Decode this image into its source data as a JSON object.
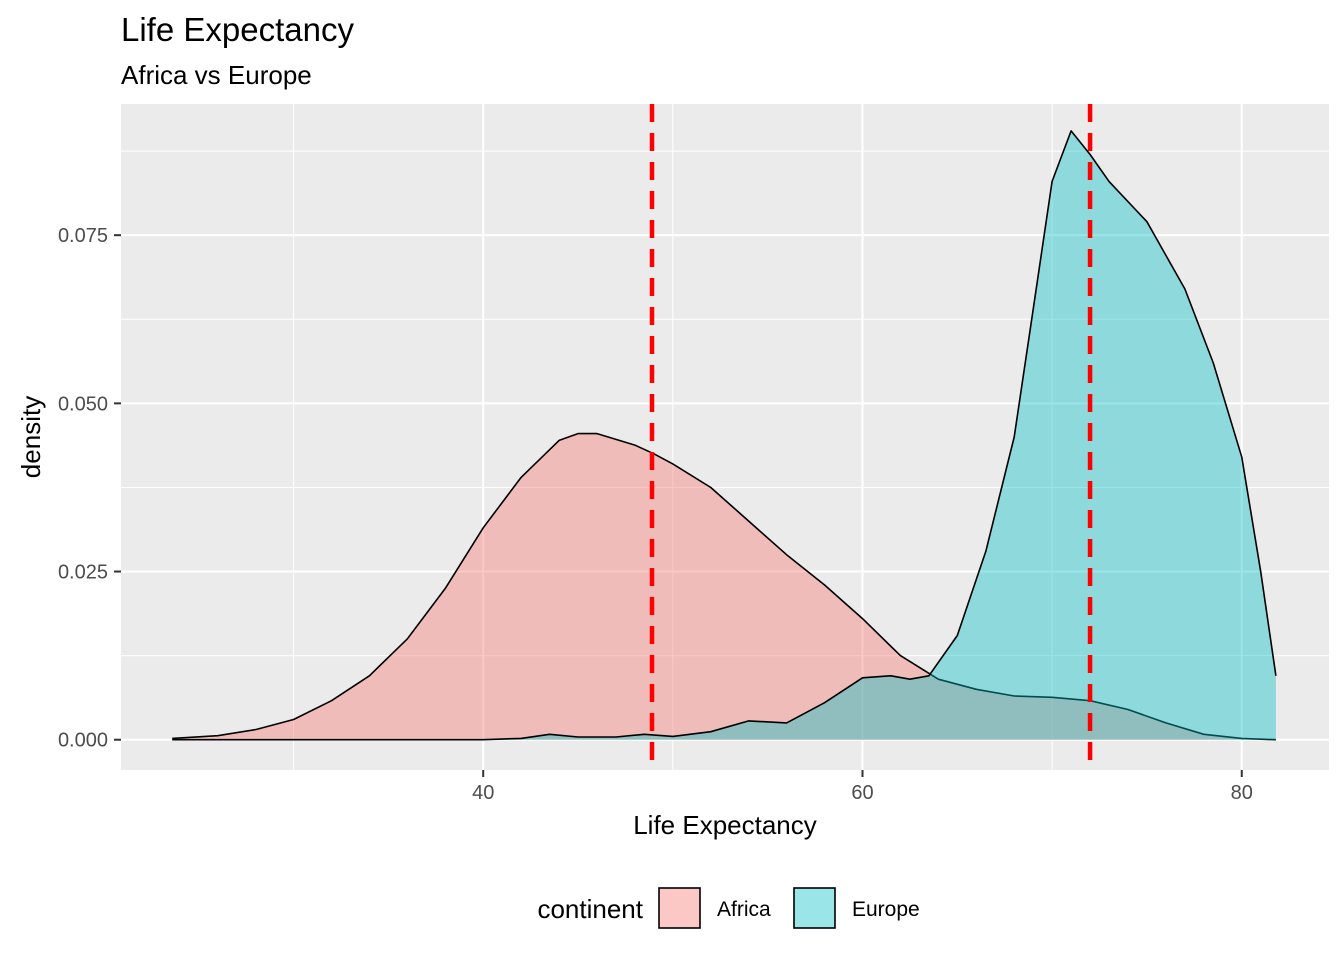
{
  "chart_data": {
    "type": "area",
    "title": "Life Expectancy",
    "subtitle": "Africa vs Europe",
    "xlabel": "Life Expectancy",
    "ylabel": "density",
    "xlim": [
      20.9,
      84.6
    ],
    "ylim": [
      -0.0045,
      0.0945
    ],
    "x_ticks": [
      40,
      60,
      80
    ],
    "x_tick_labels": [
      "40",
      "60",
      "80"
    ],
    "y_ticks": [
      0.0,
      0.025,
      0.05,
      0.075
    ],
    "y_tick_labels": [
      "0.000",
      "0.025",
      "0.050",
      "0.075"
    ],
    "grid": true,
    "legend": {
      "title": "continent",
      "position": "bottom"
    },
    "series": [
      {
        "name": "Africa",
        "color": "#F8766D",
        "opacity": 0.4,
        "mean": 48.9,
        "points": [
          [
            23.6,
            0.0002
          ],
          [
            26,
            0.0006
          ],
          [
            28,
            0.0015
          ],
          [
            30,
            0.003
          ],
          [
            32,
            0.0058
          ],
          [
            34,
            0.0095
          ],
          [
            36,
            0.015
          ],
          [
            38,
            0.0225
          ],
          [
            40,
            0.0315
          ],
          [
            42,
            0.039
          ],
          [
            44,
            0.0445
          ],
          [
            45,
            0.0455
          ],
          [
            46,
            0.0455
          ],
          [
            48,
            0.0438
          ],
          [
            49,
            0.0425
          ],
          [
            50,
            0.041
          ],
          [
            52,
            0.0375
          ],
          [
            54,
            0.0325
          ],
          [
            56,
            0.0275
          ],
          [
            58,
            0.023
          ],
          [
            60,
            0.018
          ],
          [
            62,
            0.0125
          ],
          [
            64,
            0.009
          ],
          [
            66,
            0.0075
          ],
          [
            68,
            0.0065
          ],
          [
            70,
            0.0063
          ],
          [
            72,
            0.0058
          ],
          [
            74,
            0.0045
          ],
          [
            76,
            0.0025
          ],
          [
            78,
            0.0008
          ],
          [
            80,
            0.0002
          ],
          [
            81.8,
            0.0
          ]
        ]
      },
      {
        "name": "Europe",
        "color": "#00BFC4",
        "opacity": 0.4,
        "mean": 72.0,
        "points": [
          [
            23.6,
            0.0
          ],
          [
            40,
            0.0
          ],
          [
            42,
            0.0002
          ],
          [
            43.5,
            0.0008
          ],
          [
            45,
            0.0004
          ],
          [
            47,
            0.0004
          ],
          [
            48.5,
            0.0008
          ],
          [
            50,
            0.0005
          ],
          [
            52,
            0.0012
          ],
          [
            54,
            0.0028
          ],
          [
            56,
            0.0025
          ],
          [
            58,
            0.0055
          ],
          [
            60,
            0.0092
          ],
          [
            61.5,
            0.0095
          ],
          [
            62.5,
            0.009
          ],
          [
            63.5,
            0.0095
          ],
          [
            65,
            0.0155
          ],
          [
            66.5,
            0.028
          ],
          [
            68,
            0.045
          ],
          [
            69,
            0.064
          ],
          [
            70,
            0.083
          ],
          [
            71,
            0.0905
          ],
          [
            72,
            0.087
          ],
          [
            73,
            0.083
          ],
          [
            75,
            0.077
          ],
          [
            77,
            0.067
          ],
          [
            78.5,
            0.056
          ],
          [
            80,
            0.042
          ],
          [
            81,
            0.025
          ],
          [
            81.8,
            0.0095
          ]
        ]
      }
    ]
  }
}
